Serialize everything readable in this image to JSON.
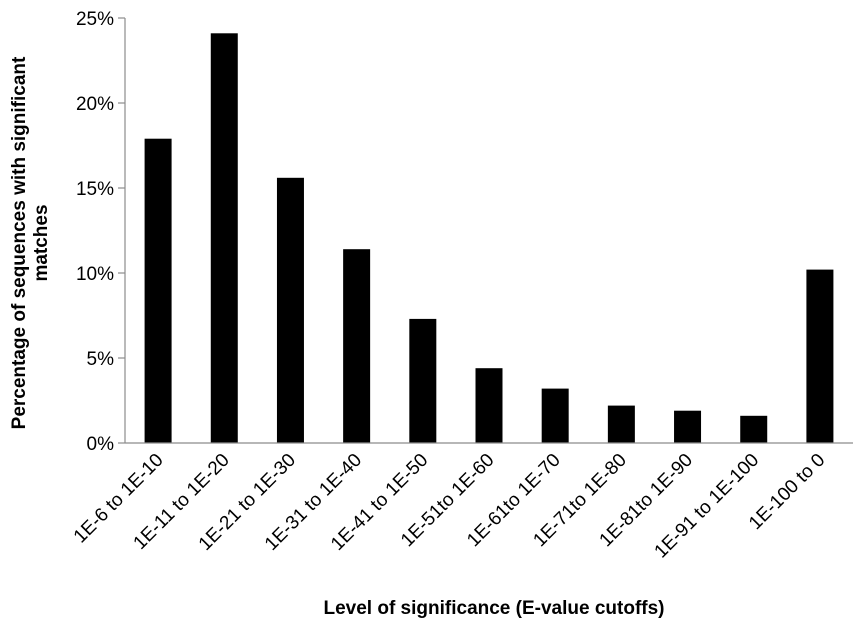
{
  "chart_data": {
    "type": "bar",
    "title": "",
    "xlabel": "Level of significance (E-value cutoffs)",
    "ylabel_lines": [
      "Percentage of sequences with significant",
      "matches"
    ],
    "categories": [
      "1E-6 to 1E-10",
      "1E-11 to 1E-20",
      "1E-21 to 1E-30",
      "1E-31 to 1E-40",
      "1E-41 to 1E-50",
      "1E-51to 1E-60",
      "1E-61to 1E-70",
      "1E-71to 1E-80",
      "1E-81to 1E-90",
      "1E-91 to 1E-100",
      "1E-100 to 0"
    ],
    "values": [
      17.9,
      24.1,
      15.6,
      11.4,
      7.3,
      4.4,
      3.2,
      2.2,
      1.9,
      1.6,
      10.2
    ],
    "unit": "%",
    "ylim": [
      0,
      25
    ],
    "yticks": [
      0,
      5,
      10,
      15,
      20,
      25
    ],
    "ytick_labels": [
      "0%",
      "5%",
      "10%",
      "15%",
      "20%",
      "25%"
    ],
    "grid": false,
    "bar_color": "#000000"
  }
}
